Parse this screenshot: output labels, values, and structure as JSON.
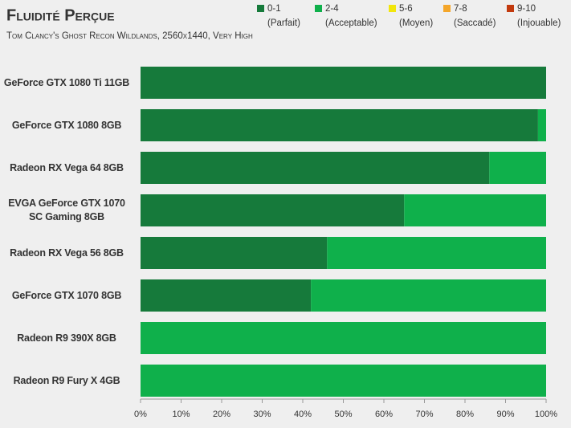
{
  "chart_data": {
    "type": "stacked-barh",
    "title": "Fluidité Perçue",
    "subtitle": "Tom Clancy's Ghost Recon Wildlands, 2560x1440, Very High",
    "categories": [
      "GeForce GTX 1080 Ti 11GB",
      "GeForce GTX 1080 8GB",
      "Radeon RX Vega 64 8GB",
      "EVGA GeForce GTX 1070 SC Gaming 8GB",
      "Radeon RX Vega 56 8GB",
      "GeForce GTX 1070 8GB",
      "Radeon R9 390X 8GB",
      "Radeon R9 Fury X 4GB"
    ],
    "series": [
      {
        "name": "0-1",
        "description": "(Parfait)",
        "color": "#167a3b",
        "values": [
          100,
          98,
          86,
          65,
          46,
          42,
          0,
          0
        ]
      },
      {
        "name": "2-4",
        "description": "(Acceptable)",
        "color": "#0fb04b",
        "values": [
          0,
          2,
          14,
          35,
          54,
          58,
          100,
          100
        ]
      },
      {
        "name": "5-6",
        "description": "(Moyen)",
        "color": "#f2e60c",
        "values": [
          0,
          0,
          0,
          0,
          0,
          0,
          0,
          0
        ]
      },
      {
        "name": "7-8",
        "description": "(Saccadé)",
        "color": "#f4a62a",
        "values": [
          0,
          0,
          0,
          0,
          0,
          0,
          0,
          0
        ]
      },
      {
        "name": "9-10",
        "description": "(Injouable)",
        "color": "#c23a0e",
        "values": [
          0,
          0,
          0,
          0,
          0,
          0,
          0,
          0
        ]
      }
    ],
    "xlim": [
      0,
      100
    ],
    "xticks": [
      {
        "value": 0,
        "label": "0%"
      },
      {
        "value": 10,
        "label": "10%"
      },
      {
        "value": 20,
        "label": "20%"
      },
      {
        "value": 30,
        "label": "30%"
      },
      {
        "value": 40,
        "label": "40%"
      },
      {
        "value": 50,
        "label": "50%"
      },
      {
        "value": 60,
        "label": "60%"
      },
      {
        "value": 70,
        "label": "70%"
      },
      {
        "value": 80,
        "label": "80%"
      },
      {
        "value": 90,
        "label": "90%"
      },
      {
        "value": 100,
        "label": "100%"
      }
    ]
  }
}
